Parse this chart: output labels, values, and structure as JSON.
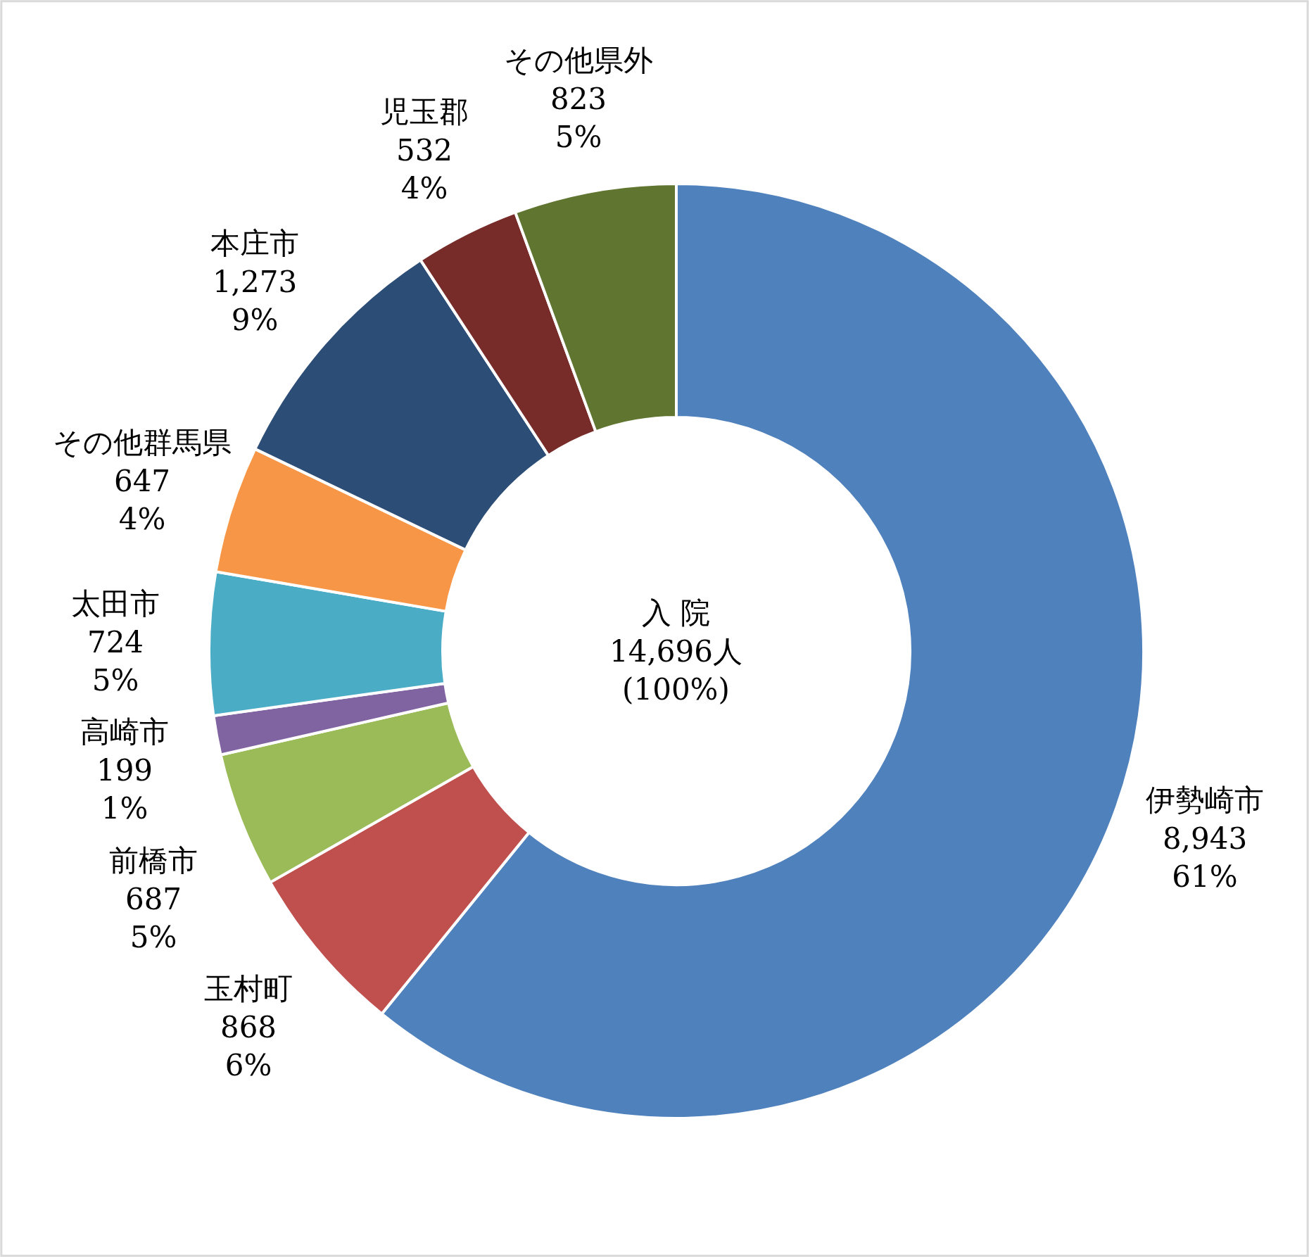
{
  "chart_data": {
    "type": "donut",
    "categories": [
      "伊勢崎市",
      "玉村町",
      "前橋市",
      "高崎市",
      "太田市",
      "その他群馬県",
      "本庄市",
      "児玉郡",
      "その他県外"
    ],
    "values": [
      8943,
      868,
      687,
      199,
      724,
      647,
      1273,
      532,
      823
    ],
    "value_labels": [
      "8,943\n61%",
      "868\n6%",
      "687\n5%",
      "199\n1%",
      "724\n5%",
      "647\n4%",
      "1,273\n9%",
      "532\n4%",
      "823\n5%"
    ],
    "colors": [
      "#4f81bd",
      "#c0504d",
      "#9bbb59",
      "#8064a2",
      "#4bacc6",
      "#f79646",
      "#2c4d75",
      "#772c2a",
      "#5f7530"
    ],
    "annotations": [
      "入 院\n14,696人\n(100%)"
    ],
    "legend": false
  }
}
